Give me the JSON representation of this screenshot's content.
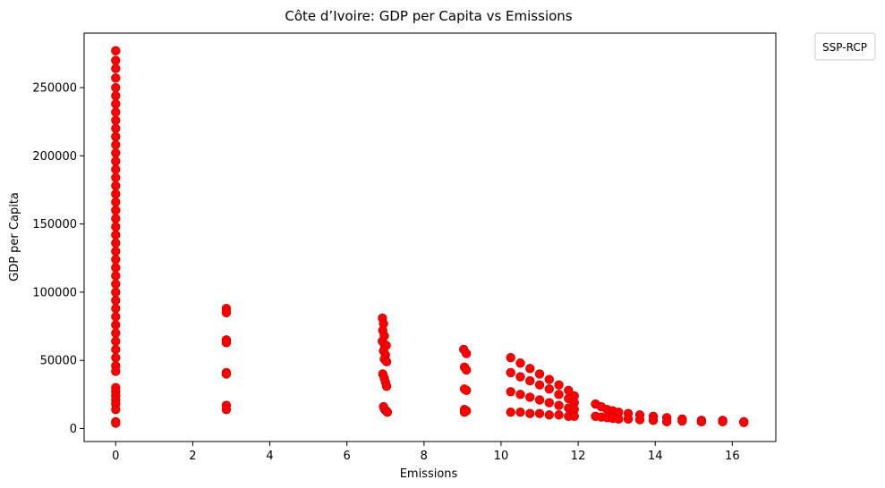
{
  "chart_data": {
    "type": "scatter",
    "title": "Côte d’Ivoire: GDP per Capita vs Emissions",
    "xlabel": "Emissions",
    "ylabel": "GDP per Capita",
    "xlim": [
      -0.82,
      17.13
    ],
    "ylim": [
      -9500,
      290000
    ],
    "xticks": [
      0,
      2,
      4,
      6,
      8,
      10,
      12,
      14,
      16
    ],
    "yticks": [
      0,
      50000,
      100000,
      150000,
      200000,
      250000
    ],
    "grid": false,
    "legend": {
      "title": "SSP-RCP",
      "placement": "outside-top-right",
      "entries": []
    },
    "marker_color": "#ff0000",
    "marker_edge_color": "#cc0000",
    "series": [
      {
        "points": [
          [
            0,
            277000
          ],
          [
            0,
            270000
          ],
          [
            0,
            264000
          ],
          [
            0,
            257000
          ],
          [
            0,
            250000
          ],
          [
            0,
            244000
          ],
          [
            0,
            238000
          ],
          [
            0,
            232000
          ],
          [
            0,
            226000
          ],
          [
            0,
            220000
          ],
          [
            0,
            214000
          ],
          [
            0,
            208000
          ],
          [
            0,
            202000
          ],
          [
            0,
            196000
          ],
          [
            0,
            190000
          ],
          [
            0,
            184000
          ],
          [
            0,
            178000
          ],
          [
            0,
            172000
          ],
          [
            0,
            166000
          ],
          [
            0,
            160000
          ],
          [
            0,
            154000
          ],
          [
            0,
            148000
          ],
          [
            0,
            142000
          ],
          [
            0,
            136000
          ],
          [
            0,
            130000
          ],
          [
            0,
            124000
          ],
          [
            0,
            118000
          ],
          [
            0,
            112000
          ],
          [
            0,
            106000
          ],
          [
            0,
            100000
          ],
          [
            0,
            94000
          ],
          [
            0,
            88000
          ],
          [
            0,
            82000
          ],
          [
            0,
            76000
          ],
          [
            0,
            70000
          ],
          [
            0,
            64000
          ],
          [
            0,
            58000
          ],
          [
            0,
            52000
          ],
          [
            0,
            46000
          ],
          [
            0,
            42000
          ],
          [
            0,
            30000
          ],
          [
            0,
            27000
          ],
          [
            0,
            24000
          ],
          [
            0,
            21000
          ],
          [
            0,
            18000
          ],
          [
            0,
            14000
          ],
          [
            0,
            5000
          ],
          [
            0,
            4000
          ],
          [
            2.87,
            88000
          ],
          [
            2.87,
            85000
          ],
          [
            2.87,
            65000
          ],
          [
            2.87,
            63000
          ],
          [
            2.87,
            41000
          ],
          [
            2.87,
            40000
          ],
          [
            2.87,
            17000
          ],
          [
            2.87,
            14000
          ],
          [
            6.92,
            81000
          ],
          [
            6.95,
            77000
          ],
          [
            6.93,
            72000
          ],
          [
            6.97,
            68000
          ],
          [
            6.92,
            64000
          ],
          [
            6.98,
            61000
          ],
          [
            7.02,
            61000
          ],
          [
            6.95,
            57000
          ],
          [
            7.0,
            54000
          ],
          [
            6.97,
            51000
          ],
          [
            7.03,
            49000
          ],
          [
            6.93,
            40000
          ],
          [
            6.97,
            37000
          ],
          [
            7.0,
            34000
          ],
          [
            7.03,
            31000
          ],
          [
            6.95,
            16000
          ],
          [
            6.98,
            14000
          ],
          [
            7.02,
            13000
          ],
          [
            7.05,
            12000
          ],
          [
            9.03,
            58000
          ],
          [
            9.1,
            55000
          ],
          [
            9.05,
            45000
          ],
          [
            9.1,
            43000
          ],
          [
            9.05,
            29000
          ],
          [
            9.1,
            28000
          ],
          [
            9.05,
            14000
          ],
          [
            9.1,
            13000
          ],
          [
            9.05,
            12000
          ],
          [
            10.25,
            52000
          ],
          [
            10.5,
            48000
          ],
          [
            10.75,
            44000
          ],
          [
            11.0,
            40000
          ],
          [
            11.25,
            36000
          ],
          [
            11.5,
            32000
          ],
          [
            11.75,
            28000
          ],
          [
            11.9,
            24000
          ],
          [
            10.25,
            41000
          ],
          [
            10.5,
            38000
          ],
          [
            10.75,
            35000
          ],
          [
            11.0,
            32000
          ],
          [
            11.25,
            29000
          ],
          [
            11.5,
            25000
          ],
          [
            11.75,
            22000
          ],
          [
            11.9,
            19000
          ],
          [
            10.25,
            27000
          ],
          [
            10.5,
            25000
          ],
          [
            10.75,
            23000
          ],
          [
            11.0,
            21000
          ],
          [
            11.25,
            19000
          ],
          [
            11.5,
            17000
          ],
          [
            11.75,
            15000
          ],
          [
            11.9,
            14000
          ],
          [
            10.25,
            12000
          ],
          [
            10.5,
            12000
          ],
          [
            10.75,
            11000
          ],
          [
            11.0,
            11000
          ],
          [
            11.25,
            10000
          ],
          [
            11.5,
            10000
          ],
          [
            11.75,
            9000
          ],
          [
            11.9,
            9000
          ],
          [
            12.45,
            18000
          ],
          [
            12.6,
            16000
          ],
          [
            12.75,
            14000
          ],
          [
            12.9,
            13000
          ],
          [
            13.05,
            12000
          ],
          [
            13.3,
            11000
          ],
          [
            13.6,
            10000
          ],
          [
            13.95,
            9000
          ],
          [
            14.3,
            8000
          ],
          [
            14.7,
            7000
          ],
          [
            15.2,
            6000
          ],
          [
            15.75,
            6000
          ],
          [
            16.3,
            5000
          ],
          [
            12.45,
            9000
          ],
          [
            12.6,
            8500
          ],
          [
            12.75,
            8000
          ],
          [
            12.9,
            7500
          ],
          [
            13.05,
            7000
          ],
          [
            13.3,
            7000
          ],
          [
            13.6,
            6500
          ],
          [
            13.95,
            6000
          ],
          [
            14.3,
            5000
          ],
          [
            14.7,
            5500
          ],
          [
            15.2,
            5000
          ],
          [
            15.75,
            5000
          ],
          [
            16.3,
            4500
          ]
        ]
      }
    ]
  }
}
